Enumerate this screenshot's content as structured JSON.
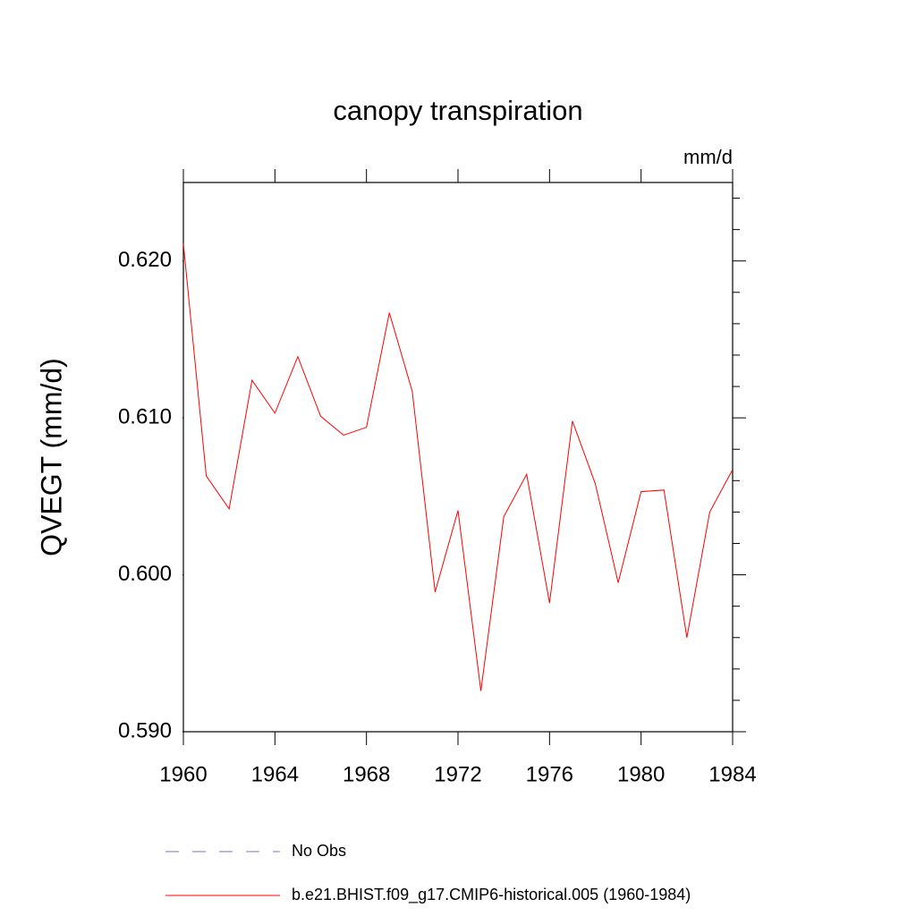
{
  "chart_data": {
    "type": "line",
    "title": "canopy transpiration",
    "units": "mm/d",
    "y_label": "QVEGT  (mm/d)",
    "x": [
      1960,
      1961,
      1962,
      1963,
      1964,
      1965,
      1966,
      1967,
      1968,
      1969,
      1970,
      1971,
      1972,
      1973,
      1974,
      1975,
      1976,
      1977,
      1978,
      1979,
      1980,
      1981,
      1982,
      1983,
      1984
    ],
    "series": [
      {
        "name": "No Obs",
        "color": "#7777bb",
        "dash": true,
        "values": [
          null,
          null,
          null,
          null,
          null,
          null,
          null,
          null,
          null,
          null,
          null,
          null,
          null,
          null,
          null,
          null,
          null,
          null,
          null,
          null,
          null,
          null,
          null,
          null,
          null
        ]
      },
      {
        "name": "b.e21.BHIST.f09_g17.CMIP6-historical.005 (1960-1984)",
        "color": "#ff0000",
        "dash": false,
        "values": [
          0.6211,
          0.6063,
          0.6042,
          0.6124,
          0.6103,
          0.6139,
          0.6101,
          0.6089,
          0.6094,
          0.6167,
          0.6117,
          0.5989,
          0.6041,
          0.5926,
          0.6037,
          0.6064,
          0.5982,
          0.6098,
          0.6058,
          0.5995,
          0.6053,
          0.6054,
          0.596,
          0.604,
          0.6067
        ]
      }
    ],
    "xlim": [
      1960,
      1984
    ],
    "xticks": [
      1960,
      1964,
      1968,
      1972,
      1976,
      1980,
      1984
    ],
    "ylim": [
      0.59,
      0.625
    ],
    "yticks": [
      {
        "value": 0.59,
        "label": "0.590"
      },
      {
        "value": 0.6,
        "label": "0.600"
      },
      {
        "value": 0.61,
        "label": "0.610"
      },
      {
        "value": 0.62,
        "label": "0.620"
      }
    ],
    "grid": false
  }
}
